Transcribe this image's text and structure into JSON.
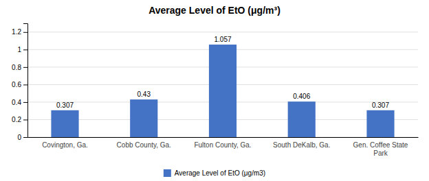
{
  "chart_data": {
    "type": "bar",
    "title": "Average Level of EtO (μg/m³)",
    "categories": [
      "Covington, Ga.",
      "Cobb County, Ga.",
      "Fulton County, Ga.",
      "South DeKalb, Ga.",
      "Gen. Coffee State\nPark"
    ],
    "series": [
      {
        "name": "Average Level of EtO (μg/m3)",
        "color": "#4472C4",
        "values": [
          0.307,
          0.43,
          1.057,
          0.406,
          0.307
        ]
      }
    ],
    "ylim": [
      0,
      1.3
    ],
    "yticks": [
      0,
      0.2,
      0.4,
      0.6,
      0.8,
      1,
      1.2
    ],
    "grid": true,
    "data_labels": true,
    "legend": "bottom"
  }
}
